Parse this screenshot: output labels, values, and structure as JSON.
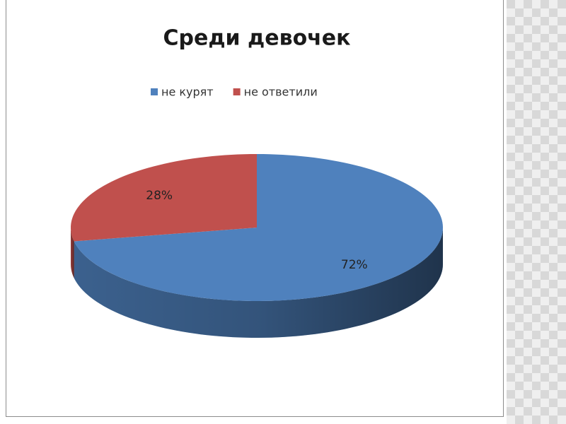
{
  "chart_data": {
    "type": "pie",
    "title": "Среди девочек",
    "categories": [
      "не курят",
      "не ответили"
    ],
    "values": [
      72,
      28
    ],
    "value_labels": [
      "72%",
      "28%"
    ],
    "colors": [
      "#4f81bd",
      "#c0504d"
    ],
    "legend": "top"
  }
}
